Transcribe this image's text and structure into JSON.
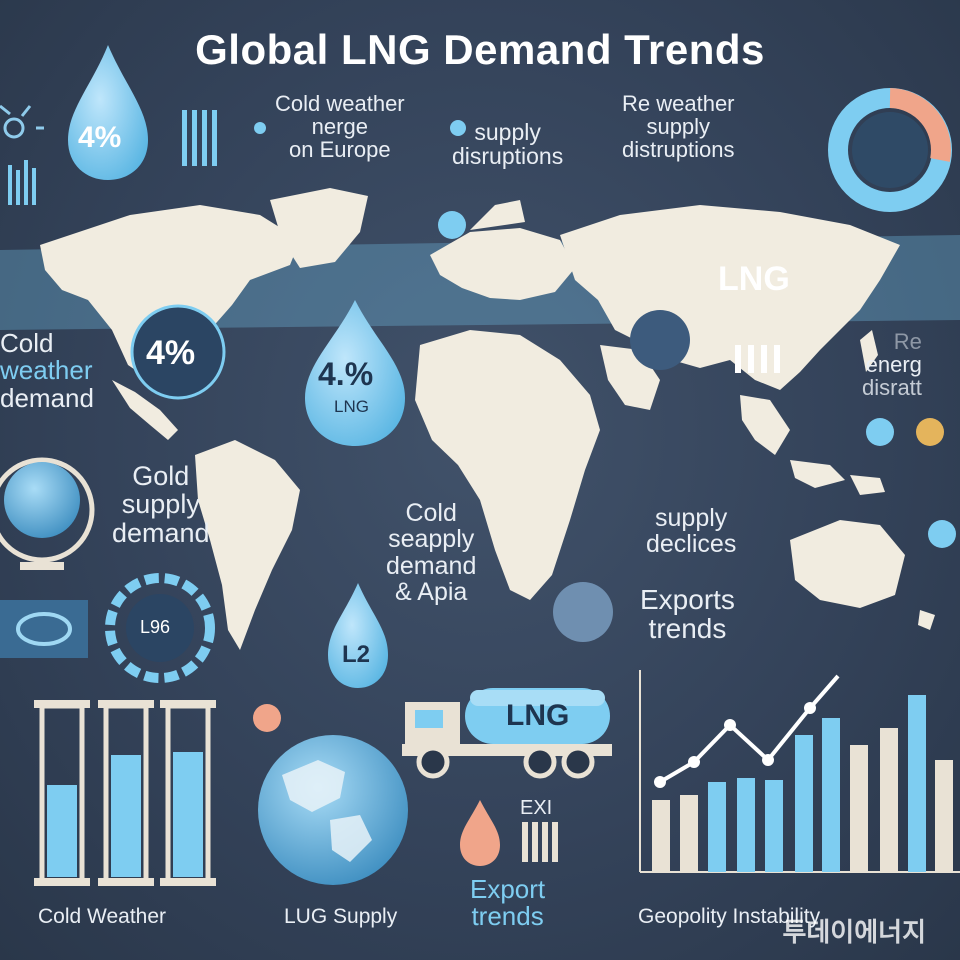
{
  "title": "Global LNG Demand Trends",
  "labels": {
    "cold_weather_europe": [
      "Cold weather",
      "nerge",
      "on Europe"
    ],
    "supply_disruptions": [
      "supply",
      "disruptions"
    ],
    "re_weather": [
      "Re weather",
      "supply",
      "distruptions"
    ],
    "cold_weather_demand": [
      "Cold",
      "weather",
      "demand"
    ],
    "gold_supply": [
      "Gold",
      "supply",
      "demand"
    ],
    "cold_seapply": [
      "Cold",
      "seapply",
      "demand",
      "& Apia"
    ],
    "supply_declices": [
      "supply",
      "declices"
    ],
    "exports_trends": [
      "Exports",
      "trends"
    ],
    "re_energ": [
      "Re",
      "energ",
      "disratt"
    ],
    "export_trends_bottom": [
      "Export",
      "trends"
    ]
  },
  "badges": {
    "drop_top": "4%",
    "circle_left": "4%",
    "drop_mid_pct": "4.%",
    "drop_mid_sub": "LNG",
    "map_lng": "LNG",
    "gauge": "L96",
    "drop_small": "L2",
    "truck": "LNG",
    "exi": "EXI"
  },
  "bottom_captions": {
    "cold_weather": "Cold Weather",
    "lug_supply": "LUG Supply",
    "geopolity": "Geopolity Instability"
  },
  "watermark": "투데이에너지",
  "colors": {
    "background": "#34435a",
    "accent": "#7ecdf1",
    "land": "#f1ece0",
    "text": "#e9eef4"
  }
}
